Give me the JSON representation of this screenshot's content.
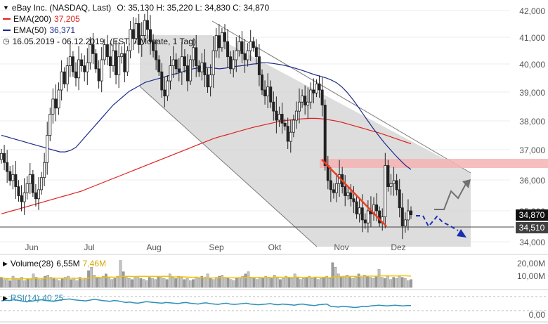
{
  "header": {
    "title": "eBay Inc. (NASDAQ, Last)",
    "ohlc": "O: 35,130  H: 35,220  L: 34,830  C: 34,870",
    "ema200_label": "EMA(200)",
    "ema200_value": "37,205",
    "ema50_label": "EMA(50)",
    "ema50_value": "36,371",
    "period": "16.05.2019 - 06.12.2019",
    "period_detail": "(EST, 7 Monate, 1 Tag)"
  },
  "colors": {
    "ema200": "#e0201c",
    "ema50": "#1c2a8a",
    "channel": "#d4d4d4",
    "resistance_zone": "#f4b3b3",
    "down_trendline": "#f03c1e",
    "scenario_up": "#707070",
    "scenario_down": "#1a2fb0",
    "volume_avg": "#f2c200",
    "rsi": "#2e8fb8",
    "tag_close": "#111111",
    "tag_level": "#404040"
  },
  "price_tags": {
    "close": "34,870",
    "support": "34,510"
  },
  "volume_panel": {
    "label": "Volume(28)",
    "value": "6,55M",
    "avg_value": "7,46M",
    "ticks": [
      "20,00M",
      "10,00M"
    ]
  },
  "rsi_panel": {
    "label": "RSI(14)",
    "value": "40,25",
    "tick": "0,00"
  },
  "chart_data": {
    "type": "candlestick",
    "title": "eBay Inc. (NASDAQ, Last)",
    "period": "16.05.2019 - 06.12.2019",
    "x_ticks": [
      "Jun",
      "Jul",
      "Aug",
      "Sep",
      "Okt",
      "Nov",
      "Dez"
    ],
    "y_ticks": [
      "42,000",
      "41,000",
      "40,000",
      "39,000",
      "38,000",
      "37,000",
      "36,000",
      "35,000",
      "34,000"
    ],
    "ylim": [
      33.7,
      42.4
    ],
    "last": {
      "open": 35.13,
      "high": 35.22,
      "low": 34.83,
      "close": 34.87
    },
    "support_level": 34.51,
    "resistance_zone": [
      36.4,
      36.7
    ],
    "indicators": {
      "ema200": 37.205,
      "ema50": 36.371,
      "rsi14": 40.25,
      "volume": "6,55M",
      "volume_avg28": "7,46M"
    },
    "closes": [
      36.9,
      36.6,
      36.3,
      36.0,
      36.2,
      35.8,
      35.5,
      35.3,
      35.6,
      35.9,
      36.2,
      35.6,
      35.4,
      35.7,
      36.1,
      36.6,
      37.5,
      38.2,
      38.7,
      38.4,
      39.0,
      39.6,
      39.2,
      39.8,
      40.1,
      39.6,
      39.4,
      40.0,
      39.8,
      39.6,
      39.9,
      40.5,
      40.2,
      39.7,
      39.3,
      40.0,
      40.5,
      40.1,
      39.8,
      40.3,
      39.5,
      40.1,
      40.2,
      39.6,
      40.3,
      41.0,
      40.7,
      41.2,
      40.5,
      40.8,
      41.3,
      41.0,
      40.6,
      40.3,
      40.0,
      39.6,
      39.0,
      38.8,
      39.3,
      39.8,
      40.0,
      39.7,
      39.6,
      40.1,
      39.8,
      39.3,
      40.0,
      40.4,
      39.8,
      39.6,
      39.9,
      39.5,
      39.1,
      39.5,
      40.3,
      40.8,
      40.4,
      40.9,
      40.6,
      40.1,
      39.7,
      40.0,
      40.3,
      40.6,
      40.2,
      40.0,
      40.3,
      40.6,
      40.4,
      40.1,
      39.5,
      39.0,
      38.8,
      39.1,
      38.6,
      38.3,
      38.0,
      38.2,
      37.9,
      37.8,
      37.3,
      37.6,
      38.0,
      38.3,
      38.6,
      38.8,
      38.5,
      38.6,
      39.0,
      38.9,
      39.2,
      39.0,
      38.5,
      36.5,
      36.0,
      35.7,
      35.6,
      35.9,
      36.2,
      35.8,
      35.5,
      35.6,
      35.4,
      35.3,
      34.9,
      35.1,
      34.7,
      34.6,
      35.0,
      34.9,
      35.2,
      35.0,
      34.6,
      34.8,
      36.5,
      35.8,
      35.9,
      36.0,
      35.7,
      35.1,
      34.5,
      34.7,
      35.0,
      34.87
    ],
    "ema200": [
      34.9,
      34.95,
      35.0,
      35.05,
      35.1,
      35.15,
      35.2,
      35.25,
      35.3,
      35.35,
      35.4,
      35.45,
      35.5,
      35.55,
      35.6,
      35.65,
      35.72,
      35.79,
      35.86,
      35.93,
      36.0,
      36.07,
      36.14,
      36.21,
      36.28,
      36.35,
      36.42,
      36.49,
      36.56,
      36.63,
      36.7,
      36.77,
      36.84,
      36.91,
      36.98,
      37.05,
      37.12,
      37.19,
      37.26,
      37.33,
      37.4,
      37.45,
      37.5,
      37.55,
      37.6,
      37.65,
      37.7,
      37.75,
      37.79,
      37.83,
      37.87,
      37.91,
      37.95,
      37.98,
      38.0,
      38.02,
      38.04,
      38.05,
      38.06,
      38.06,
      38.05,
      38.03,
      38.0,
      37.97,
      37.93,
      37.88,
      37.83,
      37.78,
      37.73,
      37.68,
      37.63,
      37.58,
      37.52,
      37.46,
      37.4,
      37.34,
      37.28,
      37.22
    ],
    "ema50": [
      37.5,
      37.45,
      37.4,
      37.35,
      37.3,
      37.25,
      37.2,
      37.15,
      37.1,
      37.05,
      37.0,
      36.95,
      36.95,
      37.0,
      37.1,
      37.3,
      37.5,
      37.7,
      37.9,
      38.1,
      38.3,
      38.5,
      38.65,
      38.8,
      38.95,
      39.05,
      39.15,
      39.25,
      39.3,
      39.35,
      39.4,
      39.45,
      39.5,
      39.55,
      39.6,
      39.65,
      39.7,
      39.73,
      39.75,
      39.75,
      39.72,
      39.7,
      39.72,
      39.75,
      39.78,
      39.8,
      39.82,
      39.85,
      39.87,
      39.9,
      39.9,
      39.88,
      39.85,
      39.82,
      39.78,
      39.73,
      39.68,
      39.62,
      39.56,
      39.5,
      39.45,
      39.4,
      39.33,
      39.24,
      39.1,
      38.92,
      38.7,
      38.46,
      38.2,
      37.95,
      37.7,
      37.47,
      37.25,
      37.05,
      36.85,
      36.67,
      36.5,
      36.37
    ],
    "volume_bars": [
      9,
      7,
      8,
      6,
      10,
      8,
      7,
      9,
      6,
      7,
      8,
      12,
      9,
      7,
      8,
      10,
      11,
      9,
      8,
      7,
      6,
      8,
      9,
      10,
      7,
      8,
      6,
      9,
      7,
      8,
      15,
      18,
      11,
      9,
      8,
      10,
      12,
      9,
      7,
      8,
      10,
      24,
      14,
      9,
      8,
      7,
      9,
      10,
      8,
      7,
      6,
      9,
      8,
      7,
      10,
      9,
      8,
      7,
      12,
      9,
      8,
      10,
      9,
      7,
      8,
      6,
      7,
      9,
      8,
      10,
      9,
      12,
      8,
      7,
      9,
      10,
      11,
      9,
      8,
      7,
      6,
      8,
      9,
      10,
      12,
      14,
      9,
      8,
      7,
      9,
      8,
      10,
      9,
      8,
      11,
      9,
      7,
      8,
      10,
      9,
      8,
      12,
      9,
      7,
      8,
      9,
      10,
      8,
      9,
      7,
      8,
      9,
      10,
      8,
      22,
      18,
      12,
      9,
      10,
      11,
      9,
      8,
      10,
      12,
      9,
      11,
      10,
      9,
      8,
      10,
      16,
      9,
      8,
      10,
      7,
      9,
      8,
      10,
      9,
      8,
      6,
      7
    ],
    "rsi": [
      52,
      54,
      53,
      55,
      54,
      52,
      50,
      51,
      52,
      54,
      55,
      53,
      52,
      51,
      53,
      55,
      56,
      57,
      55,
      54,
      53,
      52,
      54,
      56,
      55,
      53,
      52,
      51,
      53,
      52,
      50,
      48,
      49,
      47,
      46,
      48,
      50,
      49,
      48,
      47,
      46,
      48,
      47,
      46,
      45,
      47,
      48,
      46,
      45,
      44,
      46,
      47,
      45,
      44,
      43,
      45,
      46,
      44,
      43,
      44,
      45,
      46,
      44,
      43,
      42,
      43,
      44,
      45,
      43,
      42,
      44,
      43,
      42,
      41,
      43,
      44,
      42,
      41,
      40,
      42,
      43,
      44,
      38,
      37,
      36,
      38,
      37,
      36,
      35,
      36,
      38,
      37,
      39,
      40,
      41,
      40,
      39,
      40,
      41,
      40,
      39,
      40,
      40
    ]
  }
}
